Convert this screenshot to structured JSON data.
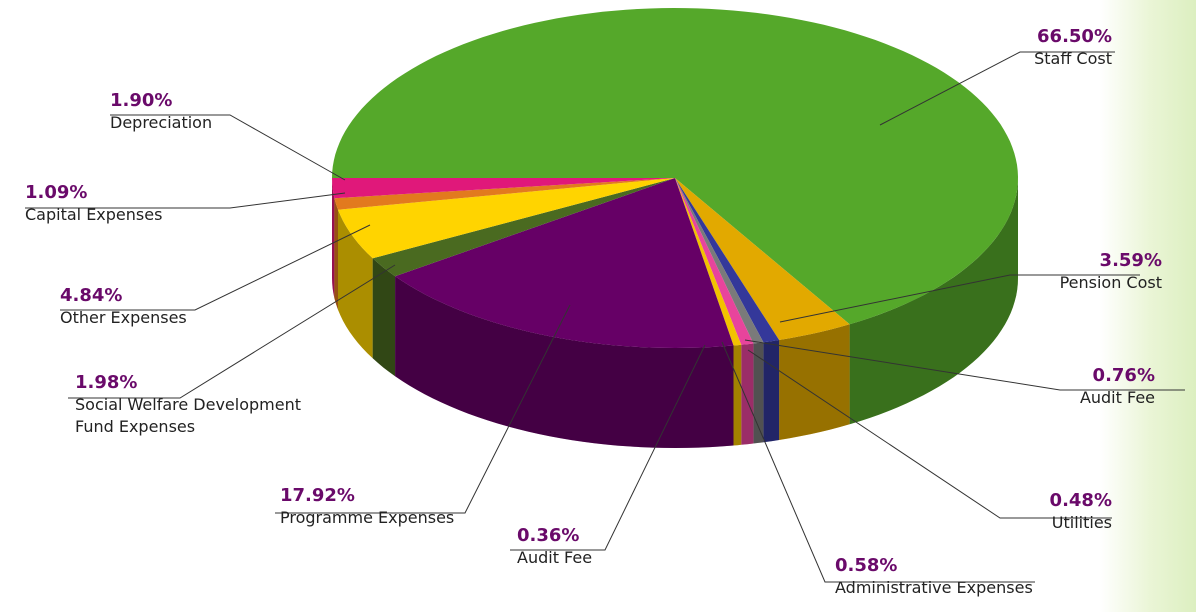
{
  "chart_data": {
    "type": "pie3d",
    "categories": [
      "Staff Cost",
      "Pension Cost",
      "Audit Fee",
      "Utilities",
      "Administrative Expenses",
      "Audit Fee",
      "Programme Expenses",
      "Social Welfare Development Fund Expenses",
      "Other Expenses",
      "Capital Expenses",
      "Depreciation"
    ],
    "values": [
      66.5,
      3.59,
      0.76,
      0.48,
      0.58,
      0.36,
      17.92,
      1.98,
      4.84,
      1.09,
      1.9
    ],
    "value_labels": [
      "66.50%",
      "3.59%",
      "0.76%",
      "0.48%",
      "0.58%",
      "0.36%",
      "17.92%",
      "1.98%",
      "4.84%",
      "1.09%",
      "1.90%"
    ],
    "colors": [
      "#55a82a",
      "#e2a900",
      "#34389a",
      "#7a7a7a",
      "#e8449c",
      "#f2c200",
      "#660066",
      "#4a6a20",
      "#ffd400",
      "#e27a1e",
      "#e0187a"
    ]
  }
}
